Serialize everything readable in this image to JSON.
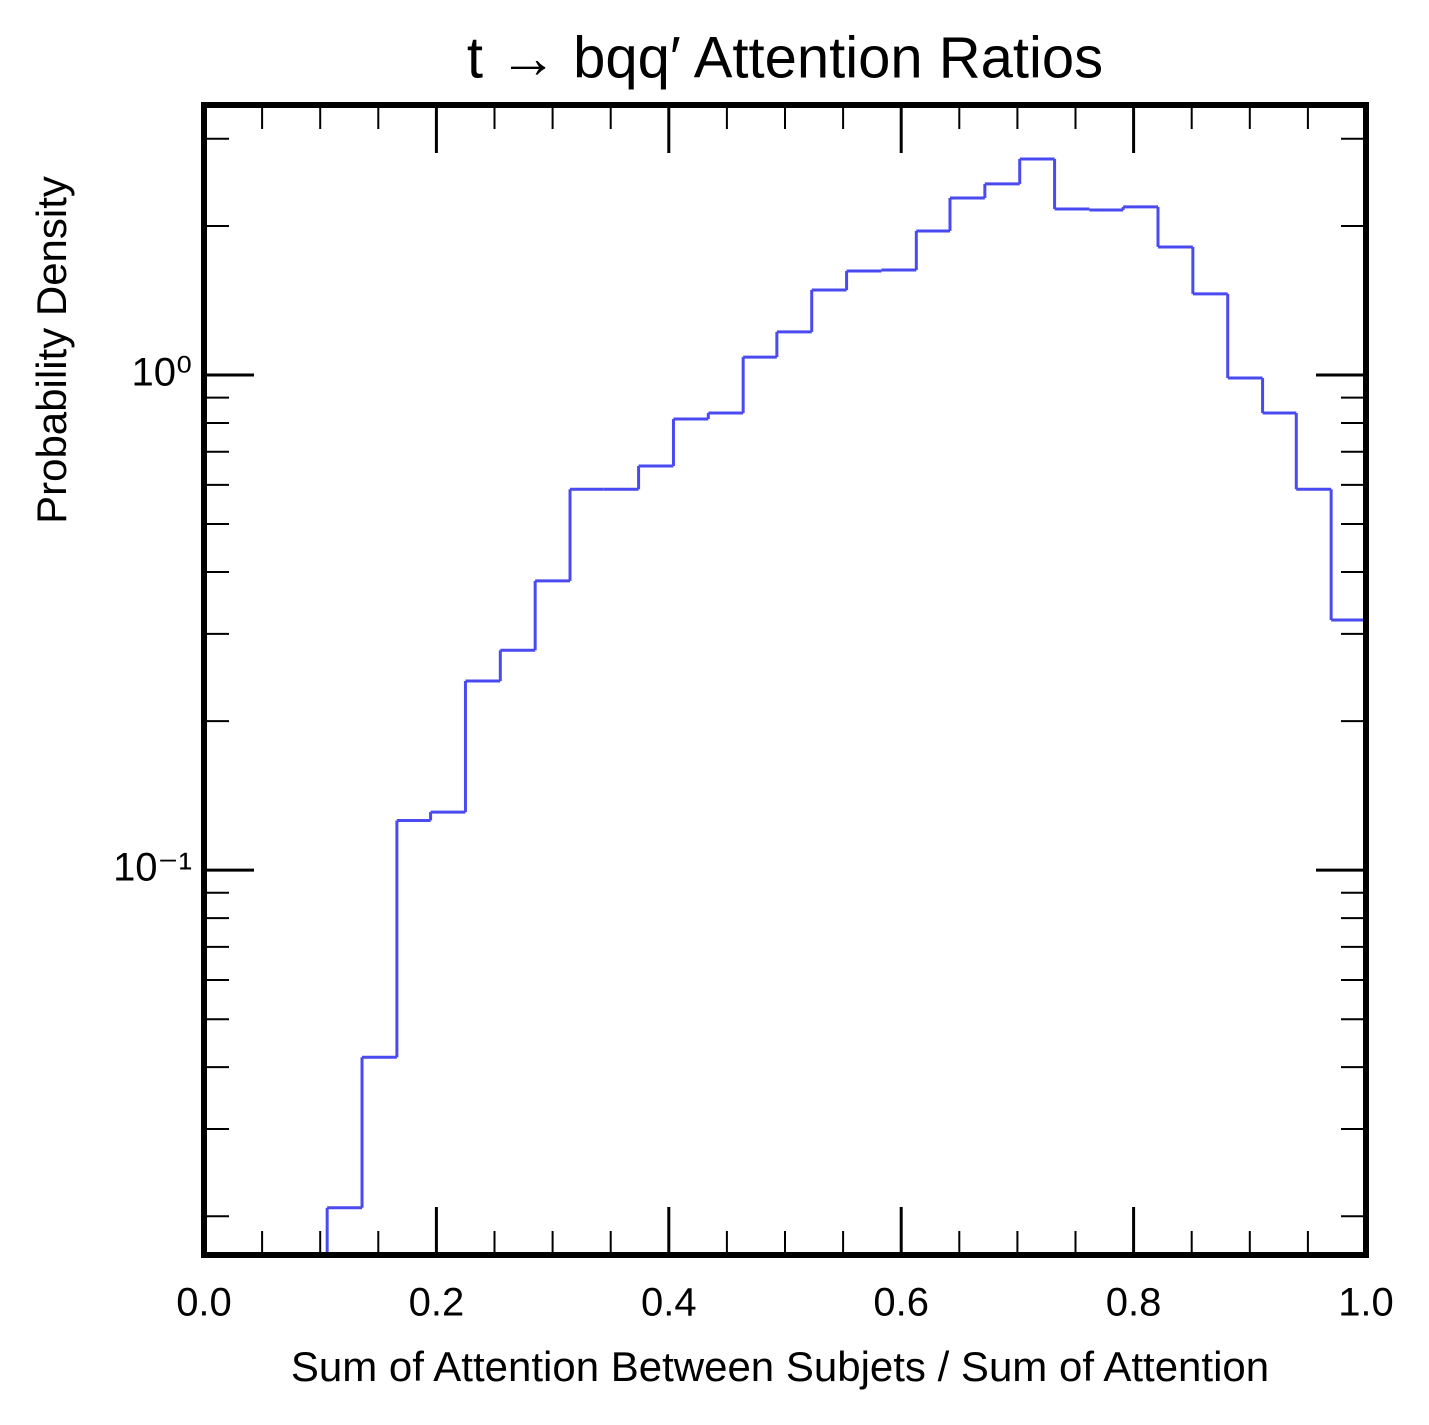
{
  "chart_data": {
    "type": "histogram",
    "title": "t → bqq′ Attention Ratios",
    "x_label": "Sum of Attention Between Subjets / Sum of Attention",
    "y_label": "Probability Density",
    "bins": [
      0.106,
      0.136,
      0.166,
      0.195,
      0.225,
      0.255,
      0.285,
      0.315,
      0.344,
      0.374,
      0.404,
      0.434,
      0.464,
      0.493,
      0.523,
      0.553,
      0.583,
      0.613,
      0.642,
      0.672,
      0.702,
      0.732,
      0.762,
      0.791,
      0.821,
      0.851,
      0.881,
      0.911,
      0.94,
      0.97,
      1.0
    ],
    "values": [
      0.0208,
      0.0419,
      0.126,
      0.131,
      0.241,
      0.278,
      0.384,
      0.588,
      0.588,
      0.655,
      0.815,
      0.838,
      1.087,
      1.222,
      1.485,
      1.622,
      1.63,
      1.954,
      2.278,
      2.432,
      2.731,
      2.164,
      2.154,
      2.185,
      1.814,
      1.458,
      0.986,
      0.838,
      0.588,
      0.32
    ],
    "color": "#4a4af0",
    "xlim": [
      0,
      1
    ],
    "xticks": [
      {
        "value": 0,
        "label": "0.0"
      },
      0.2,
      0.4,
      0.6,
      0.8,
      {
        "value": 1,
        "label": "1.0"
      }
    ],
    "xticks_minor": [
      0.05,
      0.1,
      0.15,
      0.25,
      0.3,
      0.35,
      0.45,
      0.5,
      0.55,
      0.65,
      0.7,
      0.75,
      0.85,
      0.9,
      0.95
    ],
    "ylim": [
      0.0167,
      3.51
    ],
    "yscale": "log",
    "yticks": [
      {
        "value": 0.1,
        "label": "10⁻¹"
      },
      {
        "value": 1,
        "label": "10⁰"
      }
    ],
    "yticks_minor": [
      0.02,
      0.03,
      0.04,
      0.05,
      0.06,
      0.07,
      0.08,
      0.09,
      0.2,
      0.3,
      0.4,
      0.5,
      0.6,
      0.7,
      0.8,
      0.9,
      2,
      3
    ]
  }
}
